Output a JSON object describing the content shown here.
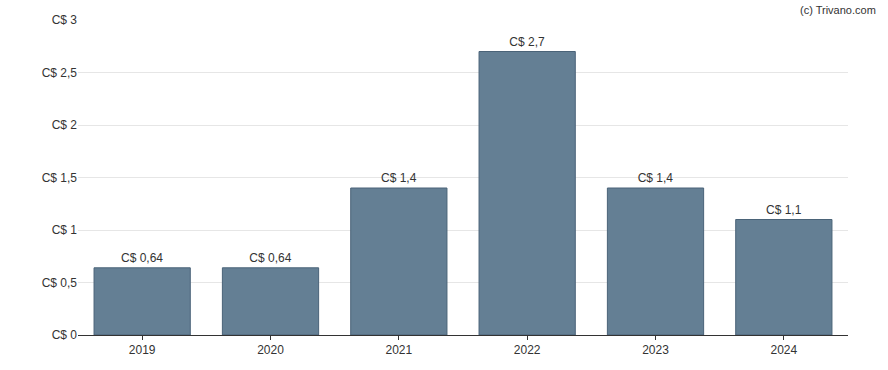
{
  "chart_data": {
    "type": "bar",
    "categories": [
      "2019",
      "2020",
      "2021",
      "2022",
      "2023",
      "2024"
    ],
    "values": [
      0.64,
      0.64,
      1.4,
      2.7,
      1.4,
      1.1
    ],
    "value_labels": [
      "C$ 0,64",
      "C$ 0,64",
      "C$ 1,4",
      "C$ 2,7",
      "C$ 1,4",
      "C$ 1,1"
    ],
    "data_labels": true,
    "color": "#647f94",
    "ylim": [
      0,
      3
    ],
    "yticks": [
      {
        "value": 0,
        "label": "C$ 0"
      },
      {
        "value": 0.5,
        "label": "C$ 0,5"
      },
      {
        "value": 1,
        "label": "C$ 1"
      },
      {
        "value": 1.5,
        "label": "C$ 1,5"
      },
      {
        "value": 2,
        "label": "C$ 2"
      },
      {
        "value": 2.5,
        "label": "C$ 2,5"
      },
      {
        "value": 3,
        "label": "C$ 3"
      }
    ],
    "grid": true,
    "annotations": [
      "(c) Trivano.com"
    ]
  }
}
